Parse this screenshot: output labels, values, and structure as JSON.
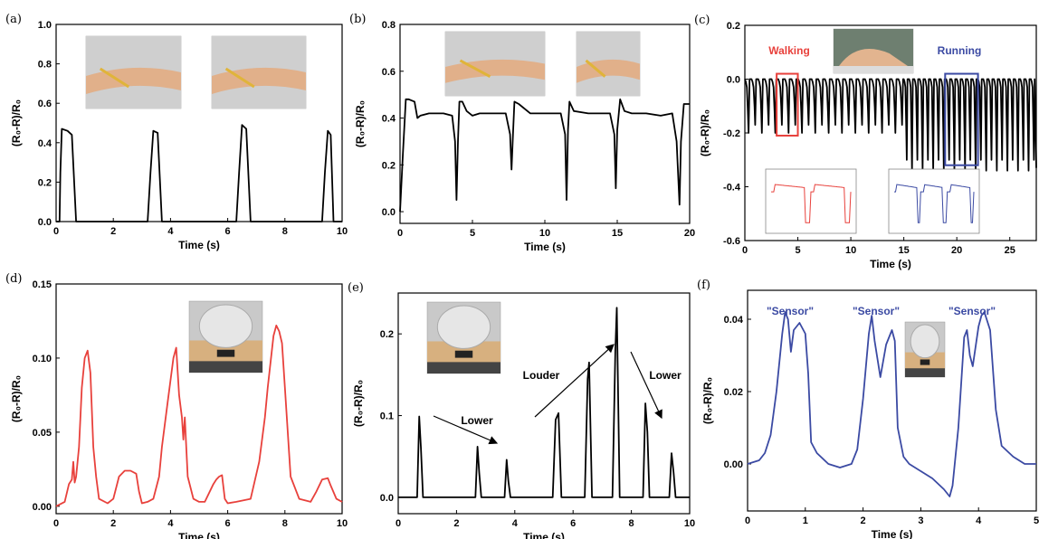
{
  "chart_data": [
    {
      "panel": "(a)",
      "type": "line",
      "xlabel": "Time (s)",
      "ylabel": "(R₀-R)/R₀",
      "xlim": [
        0,
        10
      ],
      "ylim": [
        0,
        1.0
      ],
      "xticks": [
        0,
        2,
        4,
        6,
        8,
        10
      ],
      "yticks": [
        0.0,
        0.2,
        0.4,
        0.6,
        0.8,
        1.0
      ],
      "ytick_labels": [
        "0.0",
        "0.2",
        "0.4",
        "0.6",
        "0.8",
        "1.0"
      ],
      "series": [
        {
          "color": "#000000",
          "x": [
            0,
            0.12,
            0.15,
            0.2,
            0.4,
            0.55,
            0.7,
            3.2,
            3.3,
            3.4,
            3.55,
            3.7,
            6.3,
            6.4,
            6.5,
            6.65,
            6.8,
            9.3,
            9.4,
            9.5,
            9.6,
            9.7,
            10
          ],
          "y": [
            0,
            0,
            0.25,
            0.47,
            0.46,
            0.44,
            0,
            0,
            0.25,
            0.46,
            0.45,
            0,
            0,
            0.25,
            0.49,
            0.47,
            0,
            0,
            0.25,
            0.46,
            0.44,
            0,
            0
          ]
        }
      ],
      "inset_photos": [
        "wrist-relaxed-photo",
        "wrist-bent-photo"
      ]
    },
    {
      "panel": "(b)",
      "type": "line",
      "xlabel": "Time (s)",
      "ylabel": "(R₀-R)/R₀",
      "xlim": [
        0,
        20
      ],
      "ylim": [
        -0.05,
        0.8
      ],
      "xticks": [
        0,
        5,
        10,
        15,
        20
      ],
      "yticks": [
        0.0,
        0.2,
        0.4,
        0.6,
        0.8
      ],
      "ytick_labels": [
        "0.0",
        "0.2",
        "0.4",
        "0.6",
        "0.8"
      ],
      "series": [
        {
          "color": "#000000",
          "x": [
            0,
            0.2,
            0.4,
            0.6,
            1,
            1.2,
            1.4,
            2,
            3,
            3.6,
            3.8,
            3.9,
            4.0,
            4.1,
            4.3,
            4.6,
            5,
            5.5,
            6.5,
            7.3,
            7.6,
            7.7,
            7.8,
            7.9,
            8.2,
            9,
            10,
            11.1,
            11.4,
            11.5,
            11.6,
            11.7,
            12,
            13,
            14.5,
            14.8,
            14.9,
            15.0,
            15.2,
            15.5,
            16,
            17,
            18,
            18.8,
            19.1,
            19.3,
            19.4,
            19.6,
            20
          ],
          "y": [
            0,
            0.25,
            0.48,
            0.48,
            0.47,
            0.4,
            0.41,
            0.42,
            0.42,
            0.41,
            0.3,
            0.05,
            0.3,
            0.47,
            0.47,
            0.43,
            0.41,
            0.42,
            0.42,
            0.42,
            0.33,
            0.18,
            0.33,
            0.47,
            0.46,
            0.42,
            0.42,
            0.42,
            0.33,
            0.05,
            0.35,
            0.47,
            0.43,
            0.42,
            0.42,
            0.33,
            0.1,
            0.35,
            0.48,
            0.43,
            0.42,
            0.42,
            0.41,
            0.42,
            0.3,
            0.03,
            0.3,
            0.46,
            0.46
          ]
        }
      ],
      "inset_photos": [
        "arm-straight-photo",
        "arm-flexed-photo"
      ]
    },
    {
      "panel": "(c)",
      "type": "line",
      "xlabel": "Time (s)",
      "ylabel": "(R₀-R)/R₀",
      "xlim": [
        0,
        27.5
      ],
      "ylim": [
        -0.6,
        0.2
      ],
      "xticks": [
        0,
        5,
        10,
        15,
        20,
        25
      ],
      "yticks": [
        -0.6,
        -0.4,
        -0.2,
        0.0,
        0.2
      ],
      "ytick_labels": [
        "-0.6",
        "-0.4",
        "-0.2",
        "0.0",
        "0.2"
      ],
      "series": [
        {
          "color": "#000000",
          "walking": {
            "x_range": [
              0,
              15
            ],
            "step_period": 0.63,
            "min": [
              -0.2,
              -0.17
            ]
          },
          "running": {
            "x_range": [
              15,
              27.5
            ],
            "step_period": 0.5,
            "min": [
              -0.3,
              -0.34
            ]
          }
        }
      ],
      "annotations": [
        {
          "text": "Walking",
          "color": "#e8413c",
          "box_x": [
            3.0,
            5.0
          ],
          "box_y": [
            -0.21,
            0.02
          ]
        },
        {
          "text": "Running",
          "color": "#3b4aa3",
          "box_x": [
            18.9,
            22.0
          ],
          "box_y": [
            -0.32,
            0.02
          ]
        }
      ],
      "insets": [
        {
          "color": "#e8413c",
          "xticks": [
            "5.0",
            "5.5",
            "6.0",
            "6.5",
            "7.0"
          ],
          "yticks": [
            "0.0",
            "-0.1",
            "-0.2",
            "-0.3"
          ]
        },
        {
          "color": "#3b4aa3",
          "xticks": [
            "19",
            "20",
            "21"
          ],
          "yticks": [
            "0.0",
            "-0.1",
            "-0.2",
            "-0.3"
          ]
        }
      ],
      "inset_photos": [
        "foot-photo"
      ]
    },
    {
      "panel": "(d)",
      "type": "line",
      "xlabel": "Time (s)",
      "ylabel": "(R₀-R)/R₀",
      "xlim": [
        0,
        10
      ],
      "ylim": [
        -0.005,
        0.15
      ],
      "xticks": [
        0,
        2,
        4,
        6,
        8,
        10
      ],
      "yticks": [
        0.0,
        0.05,
        0.1,
        0.15
      ],
      "ytick_labels": [
        "0.00",
        "0.05",
        "0.10",
        "0.15"
      ],
      "series": [
        {
          "color": "#e8413c",
          "x": [
            0,
            0.3,
            0.45,
            0.55,
            0.6,
            0.65,
            0.7,
            0.8,
            0.9,
            1.0,
            1.1,
            1.2,
            1.3,
            1.4,
            1.5,
            1.8,
            2.0,
            2.2,
            2.4,
            2.6,
            2.8,
            2.9,
            3.0,
            3.2,
            3.4,
            3.6,
            3.7,
            3.9,
            4.1,
            4.2,
            4.3,
            4.4,
            4.45,
            4.5,
            4.6,
            4.8,
            5.0,
            5.2,
            5.5,
            5.6,
            5.7,
            5.8,
            5.9,
            6.0,
            6.3,
            6.8,
            7.1,
            7.3,
            7.4,
            7.6,
            7.7,
            7.8,
            7.9,
            8.0,
            8.2,
            8.5,
            8.9,
            9.1,
            9.3,
            9.5,
            9.6,
            9.8,
            10
          ],
          "y": [
            0,
            0.003,
            0.015,
            0.018,
            0.03,
            0.016,
            0.02,
            0.04,
            0.08,
            0.1,
            0.105,
            0.09,
            0.04,
            0.02,
            0.005,
            0.002,
            0.005,
            0.02,
            0.024,
            0.024,
            0.022,
            0.01,
            0.002,
            0.003,
            0.005,
            0.02,
            0.04,
            0.07,
            0.1,
            0.107,
            0.075,
            0.06,
            0.045,
            0.06,
            0.02,
            0.005,
            0.003,
            0.003,
            0.015,
            0.018,
            0.02,
            0.021,
            0.005,
            0.002,
            0.003,
            0.005,
            0.03,
            0.06,
            0.08,
            0.115,
            0.122,
            0.118,
            0.11,
            0.08,
            0.02,
            0.005,
            0.003,
            0.01,
            0.018,
            0.019,
            0.014,
            0.005,
            0.003
          ]
        }
      ],
      "inset_photos": [
        "throat-sensor-photo"
      ]
    },
    {
      "panel": "(e)",
      "type": "line",
      "xlabel": "Time (s)",
      "ylabel": "(R₀-R)/R₀",
      "xlim": [
        0,
        10
      ],
      "ylim": [
        -0.02,
        0.25
      ],
      "xticks": [
        0,
        2,
        4,
        6,
        8,
        10
      ],
      "yticks": [
        0.0,
        0.1,
        0.2
      ],
      "ytick_labels": [
        "0.0",
        "0.1",
        "0.2"
      ],
      "series": [
        {
          "color": "#000000",
          "x": [
            0,
            0.65,
            0.72,
            0.78,
            0.85,
            2.65,
            2.72,
            2.78,
            2.85,
            3.65,
            3.72,
            3.78,
            3.85,
            5.3,
            5.4,
            5.5,
            5.6,
            6.4,
            6.5,
            6.55,
            6.65,
            7.35,
            7.45,
            7.5,
            7.6,
            8.4,
            8.48,
            8.55,
            8.62,
            9.3,
            9.38,
            9.45,
            9.52,
            10
          ],
          "y": [
            0,
            0.0,
            0.099,
            0.06,
            0.0,
            0.0,
            0.062,
            0.03,
            0.0,
            0.0,
            0.046,
            0.02,
            0.0,
            0.0,
            0.095,
            0.103,
            0.0,
            0.0,
            0.145,
            0.165,
            0.0,
            0.0,
            0.18,
            0.232,
            0.0,
            0.0,
            0.115,
            0.08,
            0.0,
            0.0,
            0.054,
            0.03,
            0.0,
            0.0
          ]
        }
      ],
      "annotations": [
        {
          "text": "Lower",
          "position": "after-first-group"
        },
        {
          "text": "Louder",
          "position": "middle-group"
        },
        {
          "text": "Lower",
          "position": "last-group"
        }
      ],
      "inset_photos": [
        "throat-sensor-photo"
      ]
    },
    {
      "panel": "(f)",
      "type": "line",
      "xlabel": "Time (s)",
      "ylabel": "(R₀-R)/R₀",
      "xlim": [
        0,
        5
      ],
      "ylim": [
        -0.013,
        0.048
      ],
      "xticks": [
        0,
        1,
        2,
        3,
        4,
        5
      ],
      "yticks": [
        0.0,
        0.02,
        0.04
      ],
      "ytick_labels": [
        "0.00",
        "0.02",
        "0.04"
      ],
      "series": [
        {
          "color": "#3b4aa3",
          "x": [
            0,
            0.2,
            0.3,
            0.4,
            0.5,
            0.6,
            0.65,
            0.7,
            0.75,
            0.8,
            0.9,
            1.0,
            1.05,
            1.1,
            1.2,
            1.4,
            1.6,
            1.8,
            1.9,
            2.0,
            2.1,
            2.15,
            2.2,
            2.3,
            2.4,
            2.5,
            2.55,
            2.6,
            2.7,
            2.8,
            3.0,
            3.2,
            3.4,
            3.5,
            3.55,
            3.65,
            3.75,
            3.8,
            3.85,
            3.9,
            4.0,
            4.05,
            4.1,
            4.2,
            4.3,
            4.4,
            4.6,
            4.8,
            5.0
          ],
          "y": [
            0.0,
            0.001,
            0.003,
            0.008,
            0.02,
            0.036,
            0.042,
            0.04,
            0.031,
            0.037,
            0.039,
            0.036,
            0.025,
            0.006,
            0.003,
            0.0,
            -0.001,
            0.0,
            0.004,
            0.018,
            0.036,
            0.041,
            0.034,
            0.024,
            0.033,
            0.037,
            0.034,
            0.01,
            0.002,
            0.0,
            -0.002,
            -0.004,
            -0.007,
            -0.009,
            -0.006,
            0.01,
            0.035,
            0.037,
            0.03,
            0.027,
            0.038,
            0.041,
            0.042,
            0.037,
            0.015,
            0.005,
            0.002,
            0.0,
            0.0
          ]
        }
      ],
      "annotations": [
        {
          "text": "\"Sensor\"",
          "x": 0.75
        },
        {
          "text": "\"Sensor\"",
          "x": 2.25
        },
        {
          "text": "\"Sensor\"",
          "x": 4.05
        }
      ],
      "inset_photos": [
        "throat-sensor-photo"
      ]
    }
  ],
  "labels": {
    "panels": [
      "(a)",
      "(b)",
      "(c)",
      "(d)",
      "(e)",
      "(f)"
    ],
    "walking": "Walking",
    "running": "Running",
    "lower": "Lower",
    "louder": "Louder",
    "sensor": "\"Sensor\""
  }
}
